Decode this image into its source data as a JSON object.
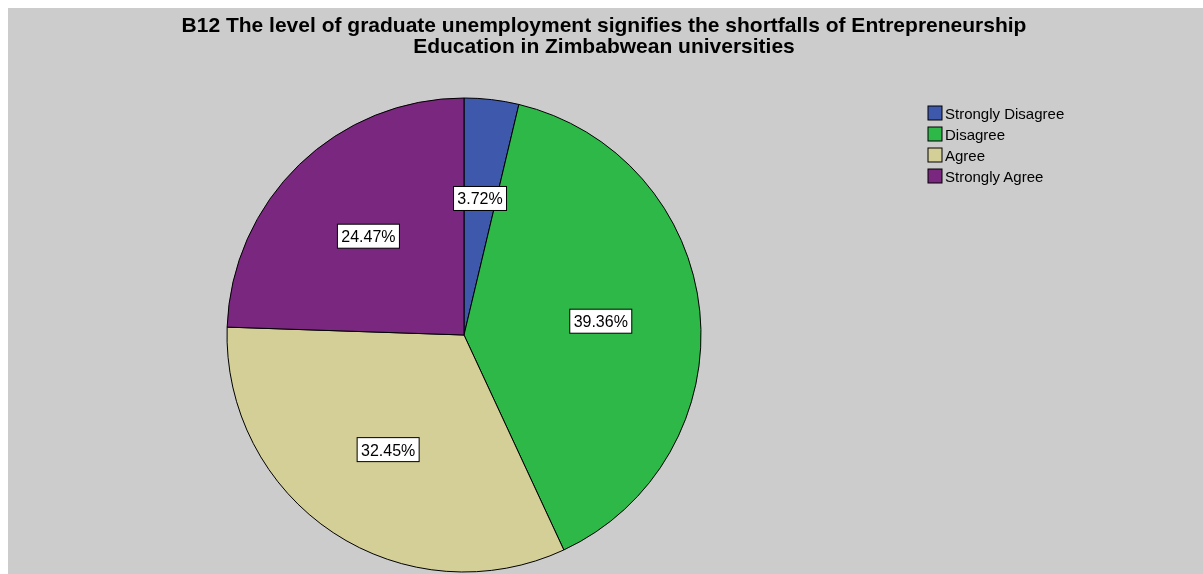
{
  "chart_data": {
    "type": "pie",
    "title": "B12 The level of graduate unemployment signifies the shortfalls of Entrepreneurship Education in Zimbabwean universities",
    "categories": [
      "Strongly Disagree",
      "Disagree",
      "Agree",
      "Strongly Agree"
    ],
    "values": [
      3.72,
      39.36,
      32.45,
      24.47
    ],
    "colors": [
      "#3e58ac",
      "#2eb848",
      "#d4cf96",
      "#79277f"
    ],
    "value_labels": [
      "3.72%",
      "39.36%",
      "32.45%",
      "24.47%"
    ],
    "legend": "top right"
  }
}
